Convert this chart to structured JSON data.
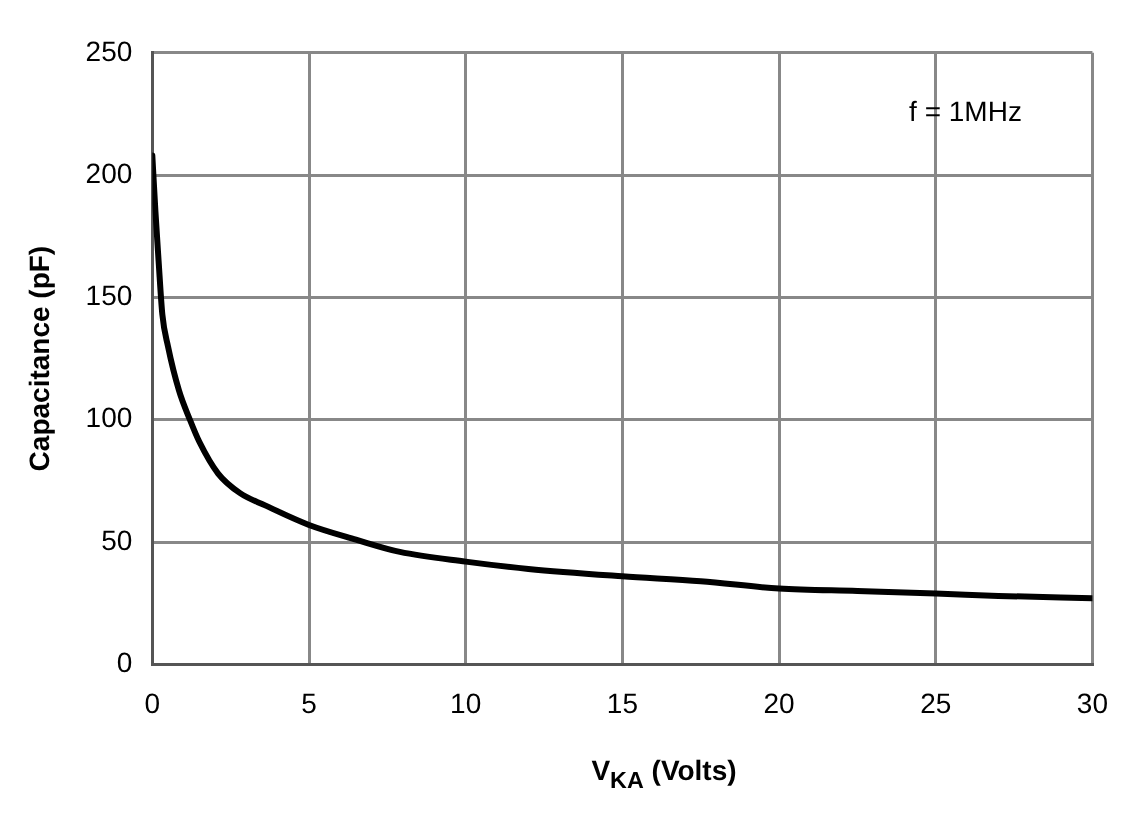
{
  "chart_data": {
    "type": "line",
    "xlabel": "V$_{KA}$ (Volts)",
    "ylabel": "Capacitance (pF)",
    "annotations": [
      "f = 1MHz"
    ],
    "series": [
      {
        "color": "#000000",
        "x": [
          0,
          0.1,
          0.2,
          0.32,
          0.5,
          0.85,
          1.2,
          1.5,
          2.1,
          2.8,
          3.6,
          5,
          6.5,
          7.9,
          10,
          12,
          15,
          17.5,
          20,
          22.5,
          25,
          27,
          30
        ],
        "values": [
          208,
          185,
          165,
          143,
          130,
          112,
          100,
          91,
          78,
          70,
          65,
          57,
          51,
          46,
          42,
          39,
          36,
          34,
          31,
          30,
          29,
          28,
          27
        ]
      }
    ],
    "xlim": [
      0,
      30
    ],
    "xticks": [
      0,
      5,
      10,
      15,
      20,
      25,
      30
    ],
    "ylim": [
      0,
      250
    ],
    "yticks": [
      0,
      50,
      100,
      150,
      200,
      250
    ],
    "grid": true,
    "legend": false,
    "marker": "none",
    "line_style": "solid"
  }
}
